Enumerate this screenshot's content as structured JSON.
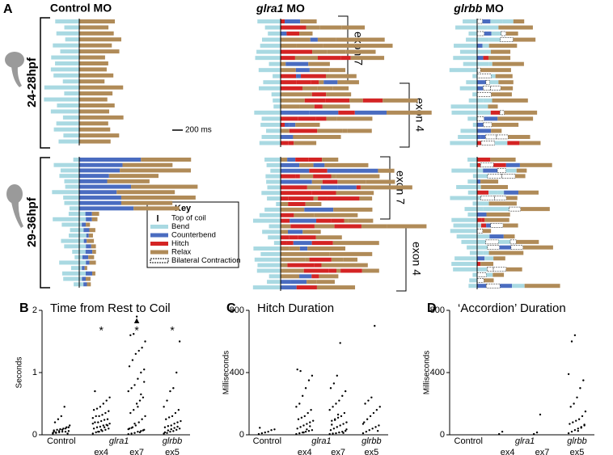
{
  "panel_a": {
    "label": "A",
    "columns": [
      {
        "title": "Control MO"
      },
      {
        "gene": "glra1",
        "suffix": "MO"
      },
      {
        "gene": "glrbb",
        "suffix": "MO"
      }
    ],
    "stages": [
      "24-28hpf",
      "29-36hpf"
    ],
    "brackets": [
      "exon 7",
      "exon 4",
      "exon 7",
      "exon 4"
    ],
    "scale": "200 ms",
    "key": {
      "title": "Key",
      "items": [
        "Top of coil",
        "Bend",
        "Counterbend",
        "Hitch",
        "Relax",
        "Bilateral Contraction"
      ],
      "colors": [
        "#000000",
        "#a9d9e2",
        "#4a6cc0",
        "#d42424",
        "#b08b58",
        "#ffffff"
      ]
    }
  },
  "chart_data": [
    {
      "type": "strip",
      "label": "B",
      "title": "Time from Rest to Coil",
      "ylabel": "Seconds",
      "categories": [
        "Control",
        "ex4",
        "ex7",
        "ex5"
      ],
      "group_labels": [
        null,
        "glra1",
        null,
        "glrbb"
      ],
      "markers": [
        null,
        "*",
        "*",
        "*"
      ],
      "overflow_marks": [
        null,
        null,
        "▲",
        null
      ],
      "ylim": [
        0,
        2
      ],
      "yticks": [
        0,
        1,
        2
      ],
      "values": [
        [
          0.02,
          0.03,
          0.04,
          0.05,
          0.05,
          0.06,
          0.07,
          0.08,
          0.09,
          0.1,
          0.12,
          0.15,
          0.2,
          0.25,
          0.3,
          0.45,
          0.02,
          0.03,
          0.04,
          0.06,
          0.08,
          0.1,
          0.12,
          0.05
        ],
        [
          0.02,
          0.04,
          0.05,
          0.06,
          0.08,
          0.1,
          0.1,
          0.12,
          0.13,
          0.15,
          0.16,
          0.18,
          0.2,
          0.2,
          0.22,
          0.24,
          0.25,
          0.27,
          0.3,
          0.3,
          0.32,
          0.35,
          0.38,
          0.4,
          0.42,
          0.45,
          0.5,
          0.55,
          0.6,
          0.7,
          0.05,
          0.08,
          0.12,
          0.15,
          0.18
        ],
        [
          0.01,
          0.02,
          0.03,
          0.05,
          0.06,
          0.08,
          0.1,
          0.12,
          0.15,
          0.2,
          0.25,
          0.3,
          0.35,
          0.4,
          0.5,
          0.55,
          0.6,
          0.7,
          0.75,
          0.8,
          0.9,
          1.0,
          1.05,
          1.1,
          1.2,
          1.3,
          1.35,
          1.4,
          1.5,
          1.6,
          1.62,
          1.9,
          0.04,
          0.07,
          0.09,
          0.11,
          0.18,
          0.45,
          0.65,
          0.85
        ],
        [
          0.02,
          0.03,
          0.05,
          0.06,
          0.08,
          0.1,
          0.12,
          0.14,
          0.15,
          0.18,
          0.2,
          0.22,
          0.25,
          0.28,
          0.3,
          0.35,
          0.4,
          0.45,
          0.55,
          0.7,
          0.75,
          1.0,
          1.5,
          0.04,
          0.07,
          0.09,
          0.11,
          0.13
        ]
      ]
    },
    {
      "type": "strip",
      "label": "C",
      "title": "Hitch Duration",
      "ylabel": "Milliseconds",
      "categories": [
        "Control",
        "ex4",
        "ex7",
        "ex5"
      ],
      "group_labels": [
        null,
        "glra1",
        null,
        "glrbb"
      ],
      "ylim": [
        0,
        800
      ],
      "yticks": [
        0,
        400,
        800
      ],
      "values": [
        [
          5,
          10,
          15,
          20,
          30,
          35,
          45
        ],
        [
          5,
          10,
          15,
          20,
          25,
          30,
          40,
          50,
          60,
          70,
          80,
          90,
          100,
          110,
          120,
          140,
          160,
          180,
          200,
          250,
          300,
          350,
          380,
          420,
          410,
          15,
          35,
          55
        ],
        [
          5,
          8,
          10,
          15,
          20,
          25,
          30,
          40,
          50,
          60,
          70,
          80,
          90,
          100,
          110,
          120,
          140,
          160,
          180,
          200,
          220,
          250,
          280,
          300,
          330,
          380,
          590,
          12,
          35,
          65,
          95,
          130
        ],
        [
          10,
          20,
          30,
          40,
          50,
          60,
          80,
          100,
          120,
          140,
          160,
          180,
          200,
          220,
          240,
          700,
          25,
          70
        ]
      ]
    },
    {
      "type": "strip",
      "label": "D",
      "title": "‘Accordion’ Duration",
      "ylabel": "Milliseconds",
      "categories": [
        "Control",
        "ex4",
        "ex7",
        "ex5"
      ],
      "group_labels": [
        null,
        "glra1",
        null,
        "glrbb"
      ],
      "ylim": [
        0,
        800
      ],
      "yticks": [
        0,
        400,
        800
      ],
      "values": [
        [],
        [
          5,
          20
        ],
        [
          5,
          15,
          130
        ],
        [
          10,
          20,
          30,
          40,
          50,
          60,
          70,
          80,
          90,
          100,
          120,
          150,
          180,
          200,
          240,
          300,
          350,
          390,
          600,
          640,
          25,
          45,
          65
        ]
      ]
    }
  ]
}
